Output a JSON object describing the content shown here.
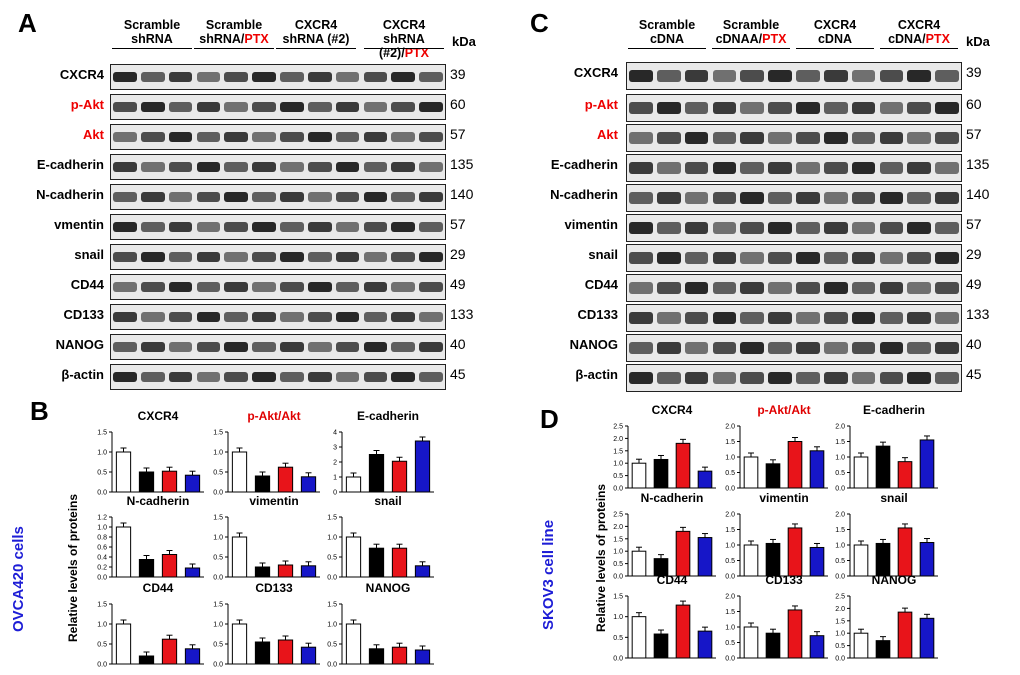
{
  "panel_A": {
    "letter": "A",
    "groups": [
      {
        "line1": "Scramble",
        "line2": "shRNA",
        "red": ""
      },
      {
        "line1": "Scramble",
        "line2": "shRNA/",
        "red": "PTX"
      },
      {
        "line1": "CXCR4",
        "line2": "shRNA (#2)",
        "red": ""
      },
      {
        "line1": "CXCR4",
        "line2": "shRNA (#2)/",
        "red": "PTX"
      }
    ],
    "kda": "kDa",
    "rows": [
      {
        "label": "CXCR4",
        "mw": "39",
        "red": false
      },
      {
        "label": "p-Akt",
        "mw": "60",
        "red": true
      },
      {
        "label": "Akt",
        "mw": "57",
        "red": true
      },
      {
        "label": "E-cadherin",
        "mw": "135",
        "red": false
      },
      {
        "label": "N-cadherin",
        "mw": "140",
        "red": false
      },
      {
        "label": "vmentin",
        "mw": "57",
        "red": false
      },
      {
        "label": "snail",
        "mw": "29",
        "red": false
      },
      {
        "label": "CD44",
        "mw": "49",
        "red": false
      },
      {
        "label": "CD133",
        "mw": "133",
        "red": false
      },
      {
        "label": "NANOG",
        "mw": "40",
        "red": false
      },
      {
        "label": "β-actin",
        "mw": "45",
        "red": false
      }
    ]
  },
  "panel_C": {
    "letter": "C",
    "groups": [
      {
        "line1": "Scramble",
        "line2": "cDNA",
        "red": ""
      },
      {
        "line1": "Scramble",
        "line2": "cDNAA/",
        "red": "PTX"
      },
      {
        "line1": "CXCR4",
        "line2": "cDNA",
        "red": ""
      },
      {
        "line1": "CXCR4",
        "line2": "cDNA/",
        "red": "PTX"
      }
    ],
    "kda": "kDa",
    "rows": [
      {
        "label": "CXCR4",
        "mw": "39",
        "red": false
      },
      {
        "label": "p-Akt",
        "mw": "60",
        "red": true
      },
      {
        "label": "Akt",
        "mw": "57",
        "red": true
      },
      {
        "label": "E-cadherin",
        "mw": "135",
        "red": false
      },
      {
        "label": "N-cadherin",
        "mw": "140",
        "red": false
      },
      {
        "label": "vimentin",
        "mw": "57",
        "red": false
      },
      {
        "label": "snail",
        "mw": "29",
        "red": false
      },
      {
        "label": "CD44",
        "mw": "49",
        "red": false
      },
      {
        "label": "CD133",
        "mw": "133",
        "red": false
      },
      {
        "label": "NANOG",
        "mw": "40",
        "red": false
      },
      {
        "label": "β-actin",
        "mw": "45",
        "red": false
      }
    ]
  },
  "panel_B": {
    "letter": "B",
    "cell_label": "OVCA420 cells",
    "ylabel": "Relative levels of proteins"
  },
  "panel_D": {
    "letter": "D",
    "cell_label": "SKOV3 cell line",
    "ylabel": "Relative levels of proteins"
  },
  "colors": {
    "bar1": "#ffffff",
    "bar2": "#000000",
    "bar3": "#e8141a",
    "bar4": "#1616c8",
    "red_text": "#e00000",
    "blue_text": "#1d1dd6"
  },
  "chart_data": [
    {
      "panel": "B",
      "type": "bar",
      "title": "CXCR4",
      "title_red": false,
      "values": [
        1.0,
        0.5,
        0.52,
        0.42
      ],
      "ylim": [
        0,
        1.5
      ],
      "yticks": [
        "0.0",
        "0.5",
        "1.0",
        "1.5"
      ]
    },
    {
      "panel": "B",
      "type": "bar",
      "title": "p-Akt/Akt",
      "title_red": true,
      "values": [
        1.0,
        0.4,
        0.62,
        0.38
      ],
      "ylim": [
        0,
        1.5
      ],
      "yticks": [
        "0.0",
        "0.5",
        "1.0",
        "1.5"
      ]
    },
    {
      "panel": "B",
      "type": "bar",
      "title": "E-cadherin",
      "title_red": false,
      "values": [
        1.0,
        2.5,
        2.05,
        3.4
      ],
      "ylim": [
        0,
        4
      ],
      "yticks": [
        "0",
        "1",
        "2",
        "3",
        "4"
      ]
    },
    {
      "panel": "B",
      "type": "bar",
      "title": "N-cadherin",
      "title_red": false,
      "values": [
        1.0,
        0.35,
        0.45,
        0.18
      ],
      "ylim": [
        0,
        1.2
      ],
      "yticks": [
        "0.0",
        "0.2",
        "0.4",
        "0.6",
        "0.8",
        "1.0",
        "1.2"
      ]
    },
    {
      "panel": "B",
      "type": "bar",
      "title": "vimentin",
      "title_red": false,
      "values": [
        1.0,
        0.25,
        0.3,
        0.28
      ],
      "ylim": [
        0,
        1.5
      ],
      "yticks": [
        "0.0",
        "0.5",
        "1.0",
        "1.5"
      ]
    },
    {
      "panel": "B",
      "type": "bar",
      "title": "snail",
      "title_red": false,
      "values": [
        1.0,
        0.72,
        0.72,
        0.28
      ],
      "ylim": [
        0,
        1.5
      ],
      "yticks": [
        "0.0",
        "0.5",
        "1.0",
        "1.5"
      ]
    },
    {
      "panel": "B",
      "type": "bar",
      "title": "CD44",
      "title_red": false,
      "values": [
        1.0,
        0.2,
        0.62,
        0.38
      ],
      "ylim": [
        0,
        1.5
      ],
      "yticks": [
        "0.0",
        "0.5",
        "1.0",
        "1.5"
      ]
    },
    {
      "panel": "B",
      "type": "bar",
      "title": "CD133",
      "title_red": false,
      "values": [
        1.0,
        0.55,
        0.6,
        0.42
      ],
      "ylim": [
        0,
        1.5
      ],
      "yticks": [
        "0.0",
        "0.5",
        "1.0",
        "1.5"
      ]
    },
    {
      "panel": "B",
      "type": "bar",
      "title": "NANOG",
      "title_red": false,
      "values": [
        1.0,
        0.38,
        0.42,
        0.35
      ],
      "ylim": [
        0,
        1.5
      ],
      "yticks": [
        "0.0",
        "0.5",
        "1.0",
        "1.5"
      ]
    },
    {
      "panel": "D",
      "type": "bar",
      "title": "CXCR4",
      "title_red": false,
      "values": [
        1.0,
        1.15,
        1.8,
        0.68
      ],
      "ylim": [
        0,
        2.5
      ],
      "yticks": [
        "0.0",
        "0.5",
        "1.0",
        "1.5",
        "2.0",
        "2.5"
      ]
    },
    {
      "panel": "D",
      "type": "bar",
      "title": "p-Akt/Akt",
      "title_red": true,
      "values": [
        1.0,
        0.78,
        1.5,
        1.2
      ],
      "ylim": [
        0,
        2.0
      ],
      "yticks": [
        "0.0",
        "0.5",
        "1.0",
        "1.5",
        "2.0"
      ]
    },
    {
      "panel": "D",
      "type": "bar",
      "title": "E-cadherin",
      "title_red": false,
      "values": [
        1.0,
        1.35,
        0.85,
        1.55
      ],
      "ylim": [
        0,
        2.0
      ],
      "yticks": [
        "0.0",
        "0.5",
        "1.0",
        "1.5",
        "2.0"
      ]
    },
    {
      "panel": "D",
      "type": "bar",
      "title": "N-cadherin",
      "title_red": false,
      "values": [
        1.0,
        0.7,
        1.8,
        1.55
      ],
      "ylim": [
        0,
        2.5
      ],
      "yticks": [
        "0.0",
        "0.5",
        "1.0",
        "1.5",
        "2.0",
        "2.5"
      ]
    },
    {
      "panel": "D",
      "type": "bar",
      "title": "vimentin",
      "title_red": false,
      "values": [
        1.0,
        1.05,
        1.55,
        0.92
      ],
      "ylim": [
        0,
        2.0
      ],
      "yticks": [
        "0.0",
        "0.5",
        "1.0",
        "1.5",
        "2.0"
      ]
    },
    {
      "panel": "D",
      "type": "bar",
      "title": "snail",
      "title_red": false,
      "values": [
        1.0,
        1.05,
        1.55,
        1.08
      ],
      "ylim": [
        0,
        2.0
      ],
      "yticks": [
        "0.0",
        "0.5",
        "1.0",
        "1.5",
        "2.0"
      ]
    },
    {
      "panel": "D",
      "type": "bar",
      "title": "CD44",
      "title_red": false,
      "values": [
        1.0,
        0.58,
        1.28,
        0.65
      ],
      "ylim": [
        0,
        1.5
      ],
      "yticks": [
        "0.0",
        "0.5",
        "1.0",
        "1.5"
      ]
    },
    {
      "panel": "D",
      "type": "bar",
      "title": "CD133",
      "title_red": false,
      "values": [
        1.0,
        0.8,
        1.55,
        0.72
      ],
      "ylim": [
        0,
        2.0
      ],
      "yticks": [
        "0.0",
        "0.5",
        "1.0",
        "1.5",
        "2.0"
      ]
    },
    {
      "panel": "D",
      "type": "bar",
      "title": "NANOG",
      "title_red": false,
      "values": [
        1.0,
        0.7,
        1.85,
        1.6
      ],
      "ylim": [
        0,
        2.5
      ],
      "yticks": [
        "0.0",
        "0.5",
        "1.0",
        "1.5",
        "2.0",
        "2.5"
      ]
    }
  ]
}
